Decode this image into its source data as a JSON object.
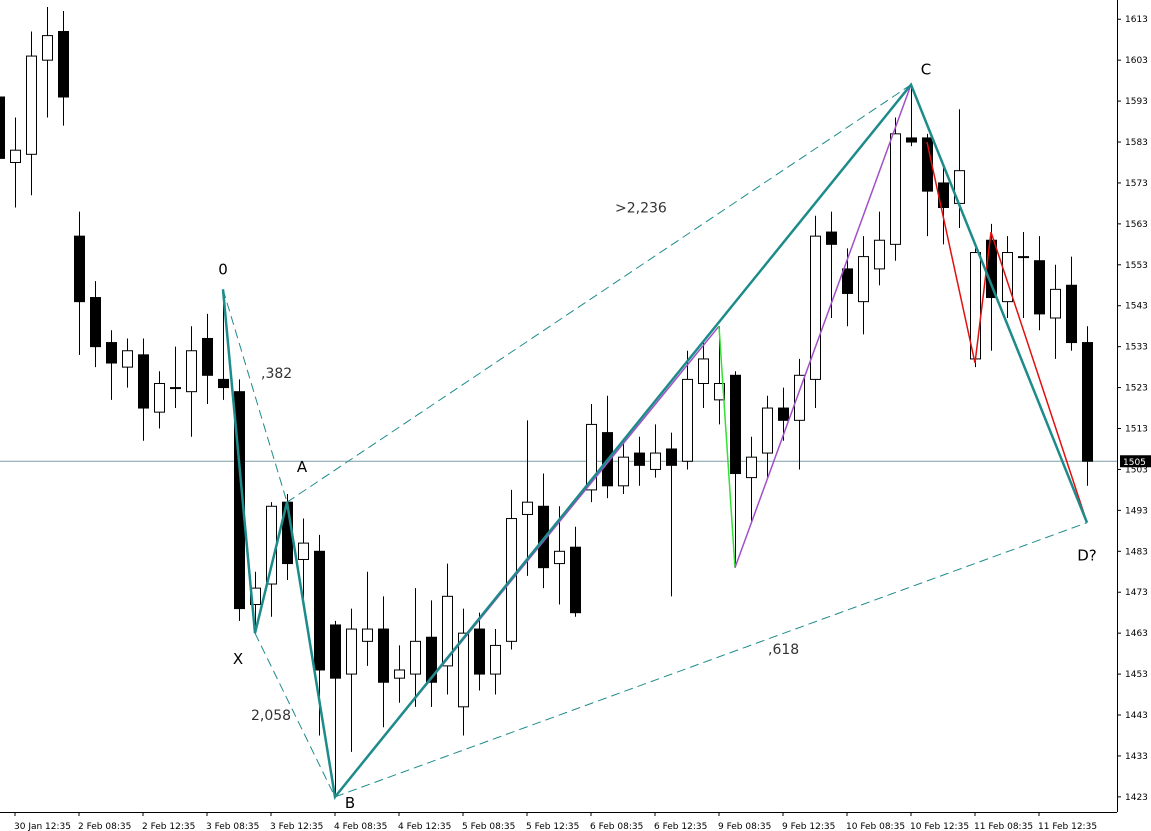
{
  "chart_data": {
    "type": "candlestick",
    "categories": [
      null,
      "30 Jan 12:35",
      null,
      null,
      null,
      "2 Feb 08:35",
      null,
      null,
      null,
      "2 Feb 12:35",
      null,
      null,
      null,
      "3 Feb 08:35",
      null,
      null,
      null,
      "3 Feb 12:35",
      null,
      null,
      null,
      "4 Feb 08:35",
      null,
      null,
      null,
      "4 Feb 12:35",
      null,
      null,
      null,
      "5 Feb 08:35",
      null,
      null,
      null,
      "5 Feb 12:35",
      null,
      null,
      null,
      "6 Feb 08:35",
      null,
      null,
      null,
      "6 Feb 12:35",
      null,
      null,
      null,
      "9 Feb 08:35",
      null,
      null,
      null,
      "9 Feb 12:35",
      null,
      null,
      null,
      "10 Feb 08:35",
      null,
      null,
      null,
      "10 Feb 12:35",
      null,
      null,
      null,
      "11 Feb 08:35",
      null,
      null,
      null,
      "11 Feb 12:35",
      null,
      null,
      null
    ],
    "open": [
      1594,
      1578,
      1580,
      1603,
      1610,
      1560,
      1545,
      1534,
      1528,
      1531,
      1517,
      1523,
      1522,
      1535,
      1525,
      1522,
      1470,
      1475,
      1495,
      1481,
      1483,
      1465,
      1453,
      1461,
      1464,
      1452,
      1453,
      1462,
      1455,
      1445,
      1464,
      1453,
      1461,
      1492,
      1494,
      1480,
      1484,
      1498,
      1512,
      1499,
      1507,
      1503,
      1508,
      1505,
      1524,
      1520,
      1526,
      1501,
      1507,
      1518,
      1515,
      1525,
      1561,
      1552,
      1544,
      1552,
      1558,
      1584,
      1584,
      1573,
      1568,
      1530,
      1559,
      1544,
      1555,
      1554,
      1540,
      1548,
      1534
    ],
    "high": [
      1596,
      1589,
      1610,
      1616,
      1615,
      1566,
      1549,
      1537,
      1535,
      1535,
      1527,
      1533,
      1538,
      1541,
      1547,
      1525,
      1478,
      1495,
      1497,
      1491,
      1487,
      1466,
      1469,
      1478,
      1472,
      1460,
      1474,
      1471,
      1480,
      1469,
      1468,
      1464,
      1498,
      1515,
      1502,
      1494,
      1489,
      1519,
      1521,
      1510,
      1511,
      1514,
      1512,
      1532,
      1534,
      1538,
      1527,
      1511,
      1521,
      1523,
      1530,
      1565,
      1566,
      1557,
      1560,
      1566,
      1589,
      1597,
      1585,
      1577,
      1591,
      1557,
      1563,
      1560,
      1561,
      1560,
      1553,
      1555,
      1538
    ],
    "low": [
      1578,
      1567,
      1570,
      1589,
      1587,
      1531,
      1528,
      1520,
      1523,
      1510,
      1513,
      1518,
      1511,
      1519,
      1520,
      1466,
      1463,
      1467,
      1476,
      1470,
      1438,
      1423,
      1434,
      1455,
      1440,
      1446,
      1445,
      1445,
      1448,
      1438,
      1449,
      1448,
      1459,
      1477,
      1474,
      1470,
      1467,
      1495,
      1496,
      1497,
      1499,
      1501,
      1472,
      1503,
      1518,
      1514,
      1479,
      1490,
      1501,
      1510,
      1503,
      1518,
      1540,
      1538,
      1536,
      1548,
      1554,
      1582,
      1560,
      1558,
      1562,
      1528,
      1532,
      1540,
      1540,
      1537,
      1530,
      1532,
      1499
    ],
    "close": [
      1579,
      1581,
      1604,
      1609,
      1594,
      1544,
      1533,
      1529,
      1532,
      1518,
      1524,
      1523,
      1532,
      1526,
      1523,
      1469,
      1474,
      1494,
      1480,
      1485,
      1454,
      1452,
      1464,
      1464,
      1451,
      1454,
      1461,
      1451,
      1472,
      1463,
      1453,
      1460,
      1491,
      1495,
      1479,
      1483,
      1468,
      1514,
      1499,
      1506,
      1504,
      1507,
      1504,
      1525,
      1530,
      1524,
      1502,
      1506,
      1518,
      1515,
      1526,
      1560,
      1558,
      1546,
      1555,
      1559,
      1585,
      1583,
      1571,
      1567,
      1576,
      1556,
      1545,
      1556,
      1555,
      1541,
      1547,
      1534,
      1505
    ],
    "up_color": "#ffffff",
    "down_color": "#000000",
    "ylim": [
      1419.3,
      1617.7
    ],
    "yticks": [
      1423,
      1433,
      1443,
      1453,
      1463,
      1473,
      1483,
      1493,
      1503,
      1513,
      1523,
      1533,
      1543,
      1553,
      1563,
      1573,
      1583,
      1593,
      1603,
      1613
    ],
    "last_price": 1505,
    "pattern": {
      "color": "#1e8b8b",
      "points": [
        {
          "label": "0",
          "x": 14,
          "y": 1547
        },
        {
          "label": "X",
          "x": 16,
          "y": 1463
        },
        {
          "label": "A",
          "x": 18,
          "y": 1495
        },
        {
          "label": "B",
          "x": 21,
          "y": 1423
        },
        {
          "label": "C",
          "x": 57,
          "y": 1597
        },
        {
          "label": "D?",
          "x": 68,
          "y": 1490
        }
      ],
      "ratios": [
        {
          "text": ",382",
          "from": 0,
          "to": 2
        },
        {
          "text": "2,058",
          "from": 1,
          "to": 3
        },
        {
          "text": ">2,236",
          "from": 2,
          "to": 4
        },
        {
          "text": ",618",
          "from": 3,
          "to": 5
        }
      ]
    },
    "overlays": [
      {
        "color": "#a050c8",
        "x": [
          21,
          45
        ],
        "values": [
          1423,
          1538
        ]
      },
      {
        "color": "#33e033",
        "x": [
          45,
          46
        ],
        "values": [
          1538,
          1479
        ]
      },
      {
        "color": "#a050c8",
        "x": [
          46,
          57
        ],
        "values": [
          1479,
          1597
        ]
      },
      {
        "color": "#e01010",
        "x": [
          58,
          61,
          62,
          68
        ],
        "values": [
          1583,
          1529,
          1561,
          1490
        ]
      }
    ]
  }
}
